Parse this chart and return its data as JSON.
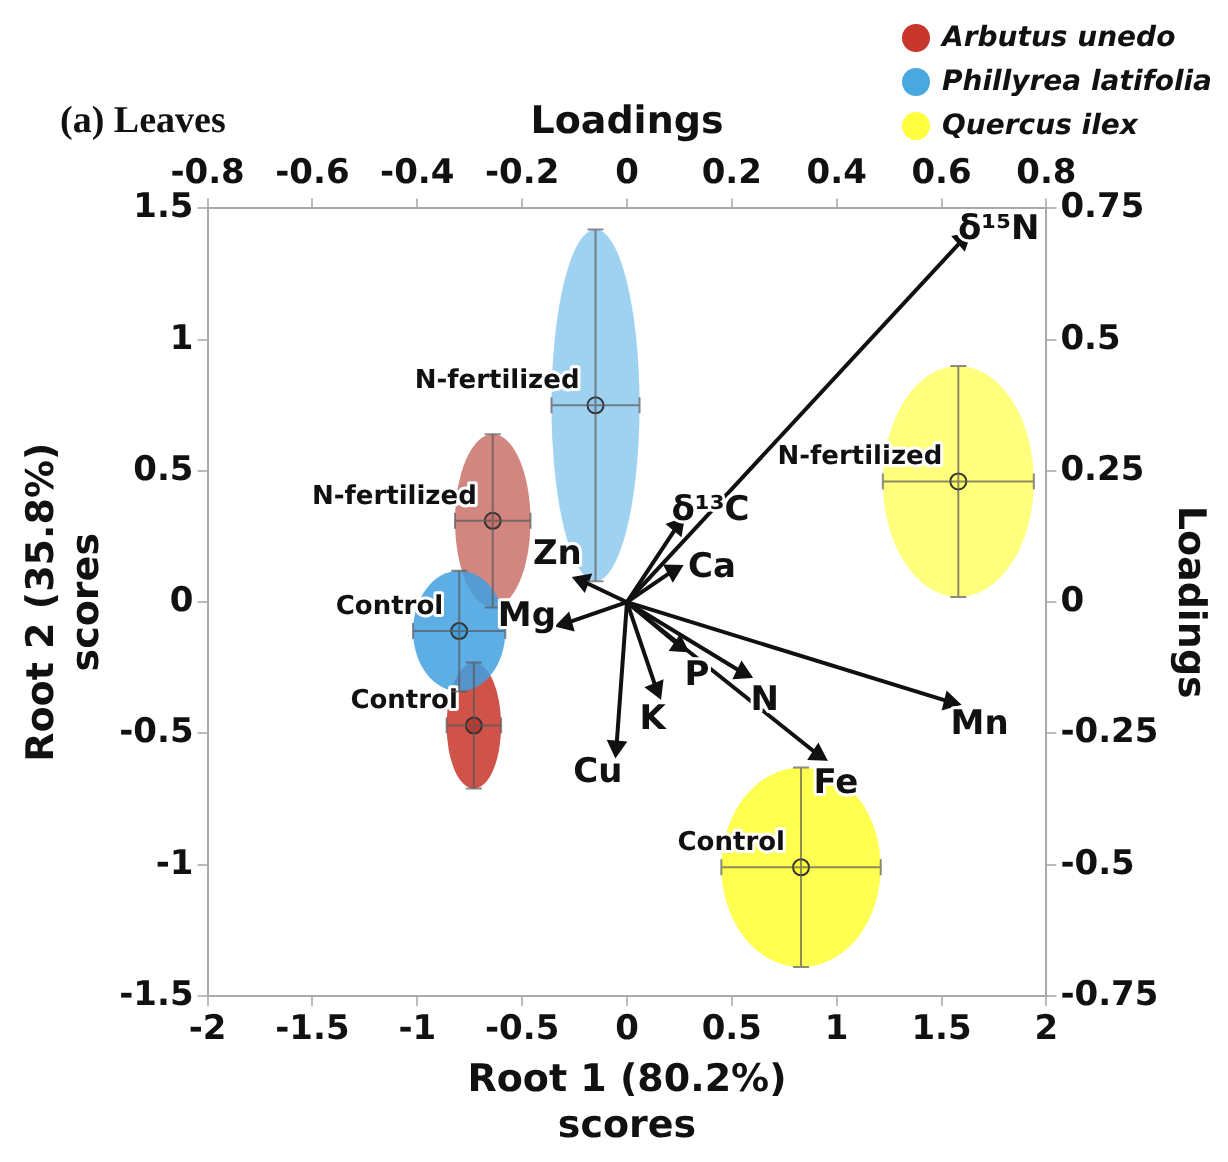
{
  "chart_data": {
    "type": "scatter",
    "title": "(a) Leaves",
    "xlabel": "Root 1 (80.2%)\nscores",
    "y2label": "Root 2 (35.8%)\nscores",
    "x2label": "Loadings",
    "ylabel": "Loadings",
    "xlim": [
      -2,
      2
    ],
    "xticks": [
      -2,
      -1.5,
      -1,
      -0.5,
      0,
      0.5,
      1,
      1.5,
      2
    ],
    "y2lim": [
      -1.5,
      1.5
    ],
    "y2ticks": [
      -1.5,
      -1,
      -0.5,
      0,
      0.5,
      1,
      1.5
    ],
    "x2lim": [
      -0.8,
      0.8
    ],
    "x2ticks": [
      -0.8,
      -0.6,
      -0.4,
      -0.2,
      0,
      0.2,
      0.4,
      0.6,
      0.8
    ],
    "ylim": [
      -0.75,
      0.75
    ],
    "yticks": [
      -0.75,
      -0.5,
      -0.25,
      0,
      0.25,
      0.5,
      0.75
    ],
    "grid": false,
    "legend": "top right",
    "marker": "circle",
    "series": [
      {
        "axis": "y2",
        "name": "Arbutus unedo",
        "color": "#c8352a",
        "colors": [
          "#c9716a",
          "#c8352a"
        ],
        "x": [
          -0.64,
          -0.73
        ],
        "values": [
          0.31,
          -0.47
        ],
        "xerrors": [
          0.18,
          0.13
        ],
        "errors": [
          0.33,
          0.24
        ],
        "value_labels": [
          "N-fertilized",
          "Control"
        ]
      },
      {
        "axis": "y2",
        "name": "Phillyrea latifolia",
        "color": "#4aa8e0",
        "colors": [
          "#8ec9ef",
          "#3fa0e0"
        ],
        "x": [
          -0.15,
          -0.8
        ],
        "values": [
          0.75,
          -0.11
        ],
        "xerrors": [
          0.21,
          0.22
        ],
        "errors": [
          0.67,
          0.23
        ],
        "value_labels": [
          "N-fertilized",
          "Control"
        ]
      },
      {
        "axis": "y2",
        "name": "Quercus ilex",
        "color": "#ffff40",
        "colors": [
          "#ffff66",
          "#ffff33"
        ],
        "x": [
          1.58,
          0.83
        ],
        "values": [
          0.46,
          -1.01
        ],
        "xerrors": [
          0.36,
          0.38
        ],
        "errors": [
          0.44,
          0.38
        ],
        "value_labels": [
          "N-fertilized",
          "Control"
        ]
      },
      {
        "type": "scatter",
        "axis": "x2",
        "marker": "triangle",
        "color": "#111111",
        "x": [
          0.64,
          0.096,
          0.088,
          -0.084,
          -0.116,
          -0.02,
          0.056,
          0.1,
          0.22,
          0.616,
          0.364
        ],
        "values": [
          0.69,
          0.145,
          0.06,
          0.04,
          -0.04,
          -0.275,
          -0.165,
          -0.083,
          -0.134,
          -0.19,
          -0.29
        ],
        "value_labels": [
          "δ¹⁵N",
          "δ¹³C",
          "Ca",
          "Zn",
          "Mg",
          "Cu",
          "K",
          "P",
          "N",
          "Mn",
          "Fe"
        ]
      }
    ]
  }
}
